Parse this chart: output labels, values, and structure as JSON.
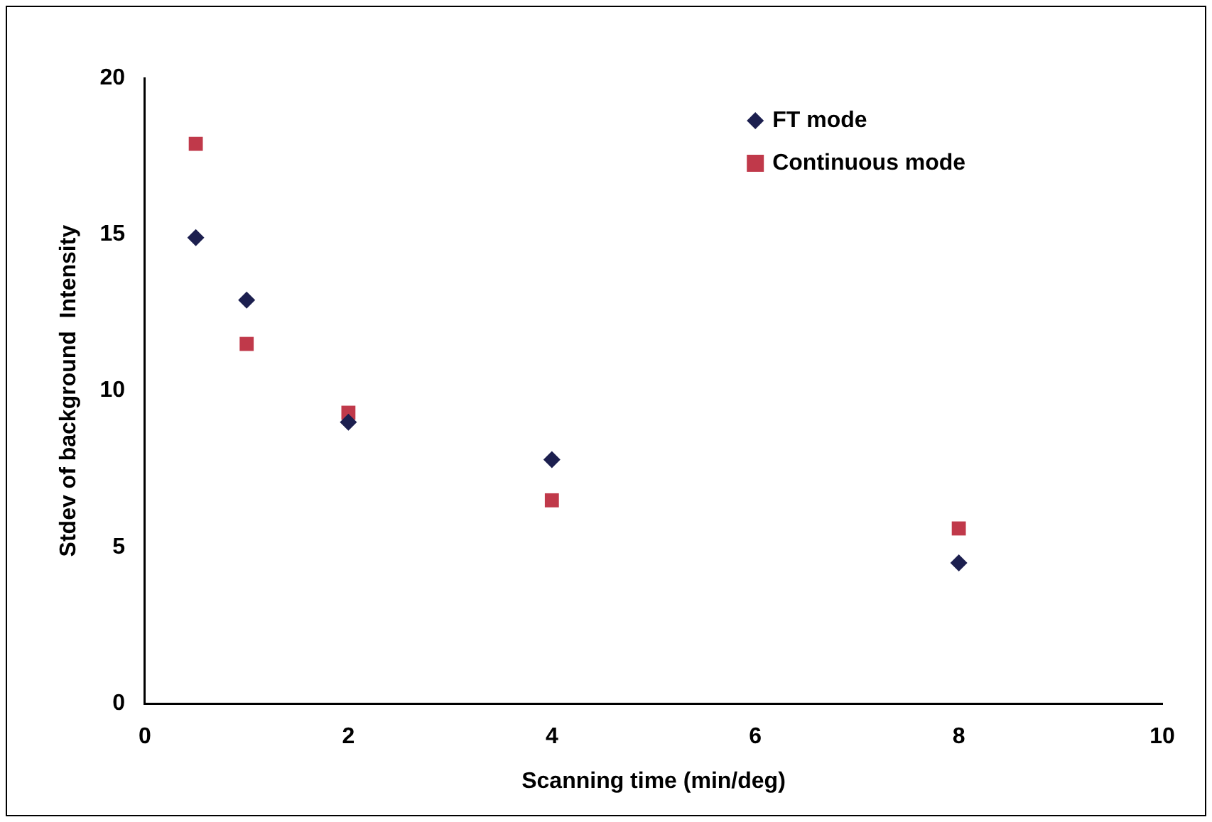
{
  "chart_data": {
    "type": "scatter",
    "xlabel": "Scanning time (min/deg)",
    "ylabel": "Stdev of background  Intensity",
    "xlim": [
      0,
      10
    ],
    "xticks": [
      0,
      2,
      4,
      6,
      8,
      10
    ],
    "ylim": [
      0,
      20
    ],
    "yticks": [
      0,
      5,
      10,
      15,
      20
    ],
    "grid": false,
    "legend": "top right",
    "series": [
      {
        "name": "FT mode",
        "color": "#1c1f4f",
        "marker": "diamond",
        "x": [
          0.5,
          1,
          2,
          4,
          8
        ],
        "values": [
          14.9,
          12.9,
          9.0,
          7.8,
          4.5
        ]
      },
      {
        "name": "Continuous mode",
        "color": "#c0394a",
        "marker": "square",
        "x": [
          0.5,
          1,
          2,
          4,
          8
        ],
        "values": [
          17.9,
          11.5,
          9.3,
          6.5,
          5.6
        ]
      }
    ]
  }
}
